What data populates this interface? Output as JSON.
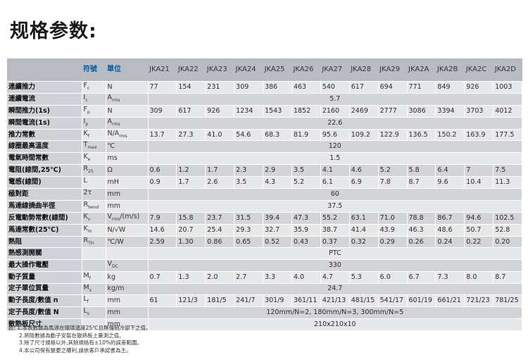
{
  "title": "规格参数:",
  "header": {
    "symbol": "符號",
    "unit": "單位",
    "models": [
      "JKA21",
      "JKA22",
      "JKA23",
      "JKA24",
      "JKA25",
      "JKA26",
      "JKA27",
      "JKA28",
      "JKA29",
      "JKA2A",
      "JKA2B",
      "JKA2C",
      "JKA2D"
    ]
  },
  "rows": [
    {
      "param": "連續推力",
      "sym": "F",
      "sub": "c",
      "unit": "N",
      "values": [
        "77",
        "154",
        "231",
        "309",
        "386",
        "463",
        "540",
        "617",
        "694",
        "771",
        "849",
        "926",
        "1003"
      ]
    },
    {
      "param": "連續電流",
      "sym": "I",
      "sub": "c",
      "unit": "A",
      "unit_sub": "rms",
      "merged": "5.7"
    },
    {
      "param": "瞬間推力(1s)",
      "sym": "F",
      "sub": "p",
      "unit": "N",
      "values": [
        "309",
        "617",
        "926",
        "1234",
        "1543",
        "1852",
        "2160",
        "2469",
        "2777",
        "3086",
        "3394",
        "3703",
        "4012"
      ]
    },
    {
      "param": "瞬間電流(1s)",
      "sym": "I",
      "sub": "p",
      "unit": "A",
      "unit_sub": "rms",
      "merged": "22.6"
    },
    {
      "param": "推力常數",
      "sym": "K",
      "sub": "f",
      "unit": "N/A",
      "unit_sub": "rms",
      "values": [
        "13.7",
        "27.3",
        "41.0",
        "54.6",
        "68.3",
        "81.9",
        "95.6",
        "109.2",
        "122.9",
        "136.5",
        "150.2",
        "163.9",
        "177.5"
      ]
    },
    {
      "param": "線圈最高溫度",
      "sym": "T",
      "sub": "max",
      "unit": "℃",
      "merged": "120"
    },
    {
      "param": "電氣時間常數",
      "sym": "K",
      "sub": "e",
      "unit": "ms",
      "merged": "1.5"
    },
    {
      "param": "電阻(線間,25℃)",
      "sym": "R",
      "sub": "25",
      "unit": "Ω",
      "values": [
        "0.6",
        "1.2",
        "1.7",
        "2.3",
        "2.9",
        "3.5",
        "4.1",
        "4.6",
        "5.2",
        "5.8",
        "6.4",
        "7",
        "7.5"
      ]
    },
    {
      "param": "電感(線間)",
      "sym": "L",
      "sub": "",
      "unit": "mH",
      "values": [
        "0.9",
        "1.7",
        "2.6",
        "3.5",
        "4.3",
        "5.2",
        "6.1",
        "6.9",
        "7.8",
        "8.7",
        "9.6",
        "10.4",
        "11.3"
      ]
    },
    {
      "param": "極對距",
      "sym": "2τ",
      "sub": "",
      "unit": "mm",
      "merged": "60"
    },
    {
      "param": "馬達線撓曲半徑",
      "sym": "R",
      "sub": "bend",
      "unit": "mm",
      "merged": "37.5"
    },
    {
      "param": "反電動勢常數(線間)",
      "sym": "K",
      "sub": "v",
      "unit": "V",
      "unit_sub": "rms",
      "unit_tail": "/(m/s)",
      "values": [
        "7.9",
        "15.8",
        "23.7",
        "31.5",
        "39.4",
        "47.3",
        "55.2",
        "63.1",
        "71.0",
        "78.8",
        "86.7",
        "94.6",
        "102.5"
      ]
    },
    {
      "param": "馬達常數(25℃)",
      "sym": "K",
      "sub": "m",
      "unit": "N/√W",
      "values": [
        "14.6",
        "20.7",
        "25.4",
        "29.3",
        "32.7",
        "35.9",
        "38.7",
        "41.4",
        "43.9",
        "46.3",
        "48.6",
        "50.7",
        "52.8"
      ]
    },
    {
      "param": "熱阻",
      "sym": "R",
      "sub": "TH",
      "unit": "℃/W",
      "values": [
        "2.59",
        "1.30",
        "0.86",
        "0.65",
        "0.52",
        "0.43",
        "0.37",
        "0.32",
        "0.29",
        "0.26",
        "0.24",
        "0.22",
        "0.20"
      ]
    },
    {
      "param": "熱感測開關",
      "sym": "",
      "sub": "",
      "unit": "",
      "merged": "PTC"
    },
    {
      "param": "最大操作電壓",
      "sym": "",
      "sub": "",
      "unit": "V",
      "unit_sub": "DC",
      "merged": "330"
    },
    {
      "param": "動子質量",
      "sym": "M",
      "sub": "f",
      "unit": "kg",
      "values": [
        "0.7",
        "1.3",
        "2.0",
        "2.7",
        "3.3",
        "4.0",
        "4.7",
        "5.3",
        "6.0",
        "6.7",
        "7.3",
        "8.0",
        "8.7"
      ]
    },
    {
      "param": "定子單位質量",
      "sym": "M",
      "sub": "s",
      "unit": "kg/m",
      "merged": "24.7"
    },
    {
      "param": "動子長度/數值 n",
      "sym": "L",
      "sub": "f",
      "unit": "mm",
      "values": [
        "61",
        "121/3",
        "181/5",
        "241/7",
        "301/9",
        "361/11",
        "421/13",
        "481/15",
        "541/17",
        "601/19",
        "661/21",
        "721/23",
        "781/25"
      ]
    },
    {
      "param": "定子長度/數值 N",
      "sym": "L",
      "sub": "s",
      "unit": "mm",
      "merged": "120mm/N=2, 180mm/N=3, 300mm/N=5"
    },
    {
      "param": "散熱板尺寸",
      "sym": "",
      "sub": "",
      "unit": "mm",
      "merged": "210x210x10"
    }
  ],
  "notes": [
    "註: 1.本表數據為馬達在環境溫度25℃且無強制冷卻下之值。",
    "2.熱阻數據為動子安裝在散熱板上量測之值。",
    "3.除了尺寸規格以外,其餘規格有±10%的誤差範圍。",
    "4.本公司保有變更之權利,請依客戶承認書為主。"
  ]
}
